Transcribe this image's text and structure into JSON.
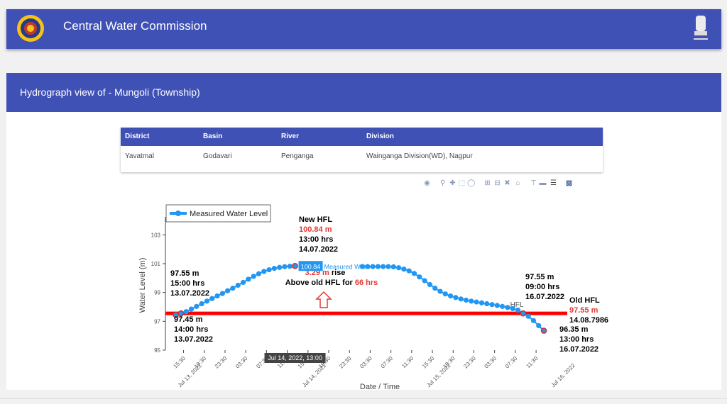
{
  "header": {
    "title": "Central Water Commission"
  },
  "subheader": {
    "title": "Hydrograph view of - Mungoli (Township)"
  },
  "info_table": {
    "columns": [
      "District",
      "Basin",
      "River",
      "Division"
    ],
    "values": [
      "Yavatmal",
      "Godavari",
      "Penganga",
      "Wainganga Division(WD), Nagpur"
    ]
  },
  "modebar": {
    "icons": [
      "camera-icon",
      "zoom-icon",
      "pan-icon",
      "box-select-icon",
      "lasso-icon",
      "zoom-in-icon",
      "zoom-out-icon",
      "autoscale-icon",
      "reset-axes-icon",
      "spike-lines-icon",
      "hover-closest-icon",
      "hover-compare-icon",
      "plotly-logo-icon"
    ]
  },
  "chart_data": {
    "type": "line",
    "xlabel": "Date / Time",
    "ylabel": "Water Level (m)",
    "ylim": [
      95,
      104
    ],
    "yticks": [
      95,
      97,
      99,
      101,
      103
    ],
    "xlim": [
      "2022-07-13 12:00",
      "2022-07-16 14:30"
    ],
    "xticks": [
      {
        "t": "2022-07-13 15:30",
        "label": "15:30"
      },
      {
        "t": "2022-07-13 19:30",
        "label": "19:30"
      },
      {
        "t": "2022-07-13 23:30",
        "label": "23:30"
      },
      {
        "t": "2022-07-14 03:30",
        "label": "03:30"
      },
      {
        "t": "2022-07-14 07:30",
        "label": "07:30"
      },
      {
        "t": "2022-07-14 11:30",
        "label": "11:30"
      },
      {
        "t": "2022-07-14 15:30",
        "label": "15:30"
      },
      {
        "t": "2022-07-14 19:30",
        "label": "19:30"
      },
      {
        "t": "2022-07-14 23:30",
        "label": "23:30"
      },
      {
        "t": "2022-07-15 03:30",
        "label": "03:30"
      },
      {
        "t": "2022-07-15 07:30",
        "label": "07:30"
      },
      {
        "t": "2022-07-15 11:30",
        "label": "11:30"
      },
      {
        "t": "2022-07-15 15:30",
        "label": "15:30"
      },
      {
        "t": "2022-07-15 19:30",
        "label": "19:30"
      },
      {
        "t": "2022-07-15 23:30",
        "label": "23:30"
      },
      {
        "t": "2022-07-16 03:30",
        "label": "03:30"
      },
      {
        "t": "2022-07-16 07:30",
        "label": "07:30"
      },
      {
        "t": "2022-07-16 11:30",
        "label": "11:30"
      }
    ],
    "date_labels": [
      {
        "t": "2022-07-14 00:00",
        "label": "Jul 13, 2022"
      },
      {
        "t": "2022-07-15 00:00",
        "label": "Jul 14, 2022"
      },
      {
        "t": "2022-07-16 00:00",
        "label": "Jul 15, 2022"
      },
      {
        "t": "2022-07-17 00:00",
        "label": "Jul 16, 2022"
      }
    ],
    "series": [
      {
        "name": "Measured Water Level",
        "color": "#2196f3",
        "points": [
          [
            "2022-07-13 14:00",
            97.45
          ],
          [
            "2022-07-13 15:00",
            97.55
          ],
          [
            "2022-07-13 16:00",
            97.67
          ],
          [
            "2022-07-13 17:00",
            97.85
          ],
          [
            "2022-07-13 18:00",
            98.03
          ],
          [
            "2022-07-13 19:00",
            98.22
          ],
          [
            "2022-07-13 20:00",
            98.4
          ],
          [
            "2022-07-13 21:00",
            98.58
          ],
          [
            "2022-07-13 22:00",
            98.76
          ],
          [
            "2022-07-13 23:00",
            98.93
          ],
          [
            "2022-07-14 00:00",
            99.12
          ],
          [
            "2022-07-14 01:00",
            99.3
          ],
          [
            "2022-07-14 02:00",
            99.5
          ],
          [
            "2022-07-14 03:00",
            99.7
          ],
          [
            "2022-07-14 04:00",
            99.92
          ],
          [
            "2022-07-14 05:00",
            100.12
          ],
          [
            "2022-07-14 06:00",
            100.3
          ],
          [
            "2022-07-14 07:00",
            100.46
          ],
          [
            "2022-07-14 08:00",
            100.58
          ],
          [
            "2022-07-14 09:00",
            100.67
          ],
          [
            "2022-07-14 10:00",
            100.74
          ],
          [
            "2022-07-14 11:00",
            100.79
          ],
          [
            "2022-07-14 12:00",
            100.82
          ],
          [
            "2022-07-14 13:00",
            100.84
          ],
          [
            "2022-07-15 02:00",
            100.8
          ],
          [
            "2022-07-15 03:00",
            100.8
          ],
          [
            "2022-07-15 04:00",
            100.8
          ],
          [
            "2022-07-15 05:00",
            100.8
          ],
          [
            "2022-07-15 06:00",
            100.8
          ],
          [
            "2022-07-15 07:00",
            100.8
          ],
          [
            "2022-07-15 08:00",
            100.78
          ],
          [
            "2022-07-15 09:00",
            100.72
          ],
          [
            "2022-07-15 10:00",
            100.62
          ],
          [
            "2022-07-15 11:00",
            100.5
          ],
          [
            "2022-07-15 12:00",
            100.32
          ],
          [
            "2022-07-15 13:00",
            100.08
          ],
          [
            "2022-07-15 14:00",
            99.82
          ],
          [
            "2022-07-15 15:00",
            99.55
          ],
          [
            "2022-07-15 16:00",
            99.3
          ],
          [
            "2022-07-15 17:00",
            99.08
          ],
          [
            "2022-07-15 18:00",
            98.9
          ],
          [
            "2022-07-15 19:00",
            98.76
          ],
          [
            "2022-07-15 20:00",
            98.65
          ],
          [
            "2022-07-15 21:00",
            98.55
          ],
          [
            "2022-07-15 22:00",
            98.47
          ],
          [
            "2022-07-15 23:00",
            98.4
          ],
          [
            "2022-07-16 00:00",
            98.34
          ],
          [
            "2022-07-16 01:00",
            98.28
          ],
          [
            "2022-07-16 02:00",
            98.22
          ],
          [
            "2022-07-16 03:00",
            98.16
          ],
          [
            "2022-07-16 04:00",
            98.1
          ],
          [
            "2022-07-16 05:00",
            98.03
          ],
          [
            "2022-07-16 06:00",
            97.96
          ],
          [
            "2022-07-16 07:00",
            97.88
          ],
          [
            "2022-07-16 08:00",
            97.78
          ],
          [
            "2022-07-16 09:00",
            97.55
          ],
          [
            "2022-07-16 10:00",
            97.35
          ],
          [
            "2022-07-16 11:00",
            97.05
          ],
          [
            "2022-07-16 12:00",
            96.7
          ],
          [
            "2022-07-16 13:00",
            96.35
          ]
        ],
        "highlighted": [
          [
            "2022-07-13 14:00",
            97.45
          ],
          [
            "2022-07-13 15:00",
            97.55
          ],
          [
            "2022-07-14 13:00",
            100.84
          ],
          [
            "2022-07-16 09:00",
            97.55
          ],
          [
            "2022-07-16 13:00",
            96.35
          ]
        ]
      },
      {
        "name": "HFL",
        "color": "#ff0000",
        "value": 97.55
      }
    ],
    "legend": {
      "label": "Measured Water Level",
      "position": "top-left"
    },
    "hfl_label": "HFL",
    "annotations": {
      "new_hfl": {
        "title": "New HFL",
        "value": "100.84 m",
        "time": "13:00 hrs",
        "date": "14.07.2022"
      },
      "rise": {
        "value": "3.29 m",
        "rise_text": " rise",
        "text": "Above old HFL for ",
        "hours": "66 hrs"
      },
      "old_hfl": {
        "title": "Old HFL",
        "value": "97.55 m",
        "date": "14.08.7986"
      },
      "point_start_low": {
        "value": "97.45 m",
        "time": "14:00 hrs",
        "date": "13.07.2022"
      },
      "point_start_high": {
        "value": "97.55 m",
        "time": "15:00 hrs",
        "date": "13.07.2022"
      },
      "point_end_high": {
        "value": "97.55 m",
        "time": "09:00 hrs",
        "date": "16.07.2022"
      },
      "point_end_low": {
        "value": "96.35 m",
        "time": "13:00 hrs",
        "date": "16.07.2022"
      }
    },
    "hover": {
      "value": "100.84",
      "series": "Measured Wat...",
      "time": "Jul 14, 2022, 13:00"
    }
  }
}
